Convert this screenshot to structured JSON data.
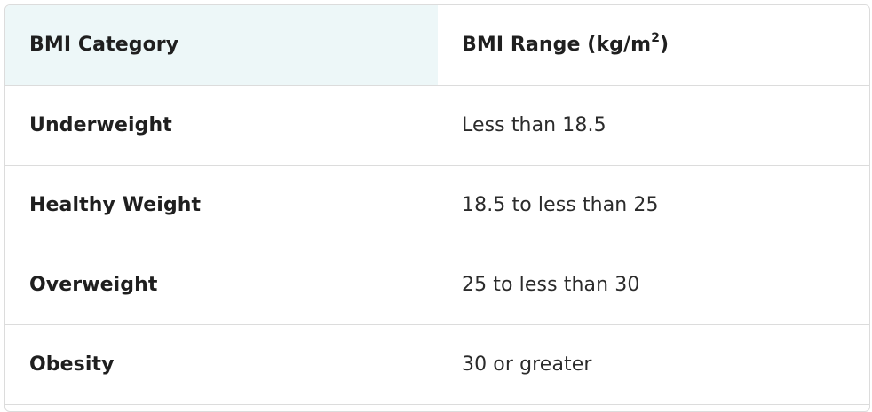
{
  "table": {
    "headers": {
      "category": "BMI Category",
      "range_prefix": "BMI Range (kg/m",
      "range_superscript": "2",
      "range_suffix": ")"
    },
    "rows": [
      {
        "category": "Underweight",
        "range": "Less than 18.5"
      },
      {
        "category": "Healthy Weight",
        "range": "18.5 to less than 25"
      },
      {
        "category": "Overweight",
        "range": "25 to less than 30"
      },
      {
        "category": "Obesity",
        "range": "30 or greater"
      }
    ],
    "colors": {
      "header_first_cell_bg": "#edf7f8",
      "border": "#dcdcdc"
    }
  }
}
